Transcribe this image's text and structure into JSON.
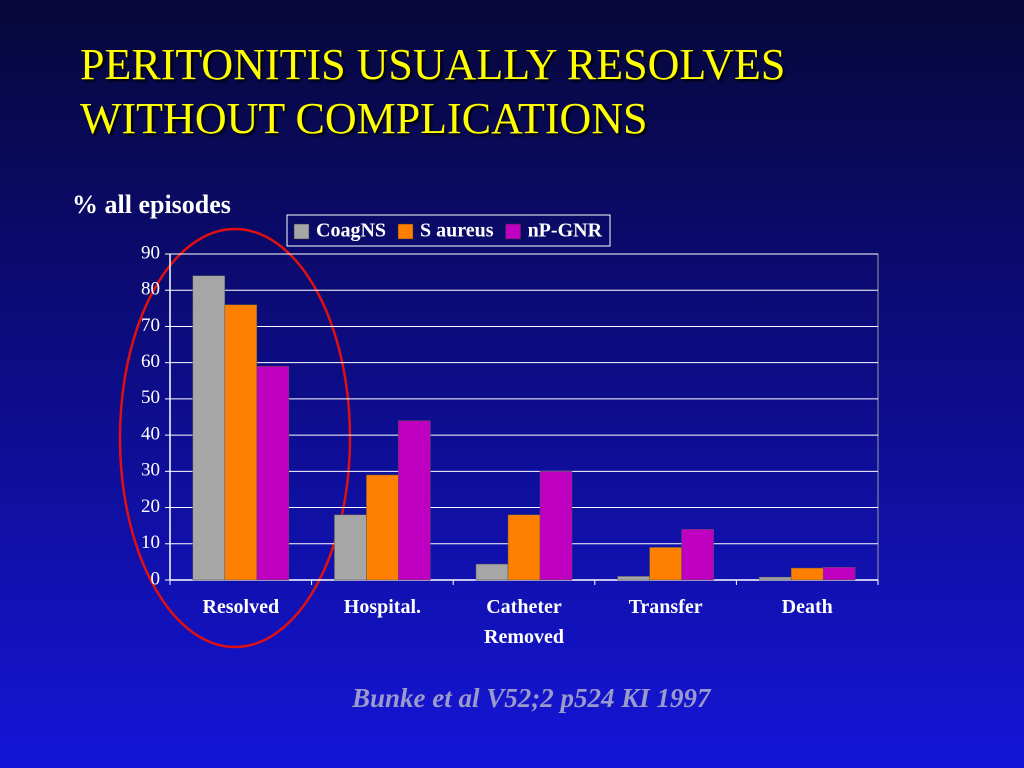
{
  "chart_data": {
    "type": "bar",
    "title": "PERITONITIS USUALLY RESOLVES WITHOUT COMPLICATIONS",
    "y_label": "% all episodes",
    "source": "Bunke et al V52;2 p524 KI 1997",
    "categories": [
      "Resolved",
      "Hospital.",
      "Catheter Removed",
      "Transfer",
      "Death"
    ],
    "series": [
      {
        "name": "CoagNS",
        "color": "#a6a6a6",
        "values": [
          84,
          18,
          4.4,
          1,
          0.8
        ]
      },
      {
        "name": "S aureus",
        "color": "#ff8000",
        "values": [
          76,
          29,
          18,
          9,
          3.3
        ]
      },
      {
        "name": "nP-GNR",
        "color": "#c000c0",
        "values": [
          59,
          44,
          30,
          14,
          3.5
        ]
      }
    ],
    "ylim": [
      0,
      90
    ],
    "yticks": [
      0,
      10,
      20,
      30,
      40,
      50,
      60,
      70,
      80,
      90
    ],
    "grid": true
  }
}
